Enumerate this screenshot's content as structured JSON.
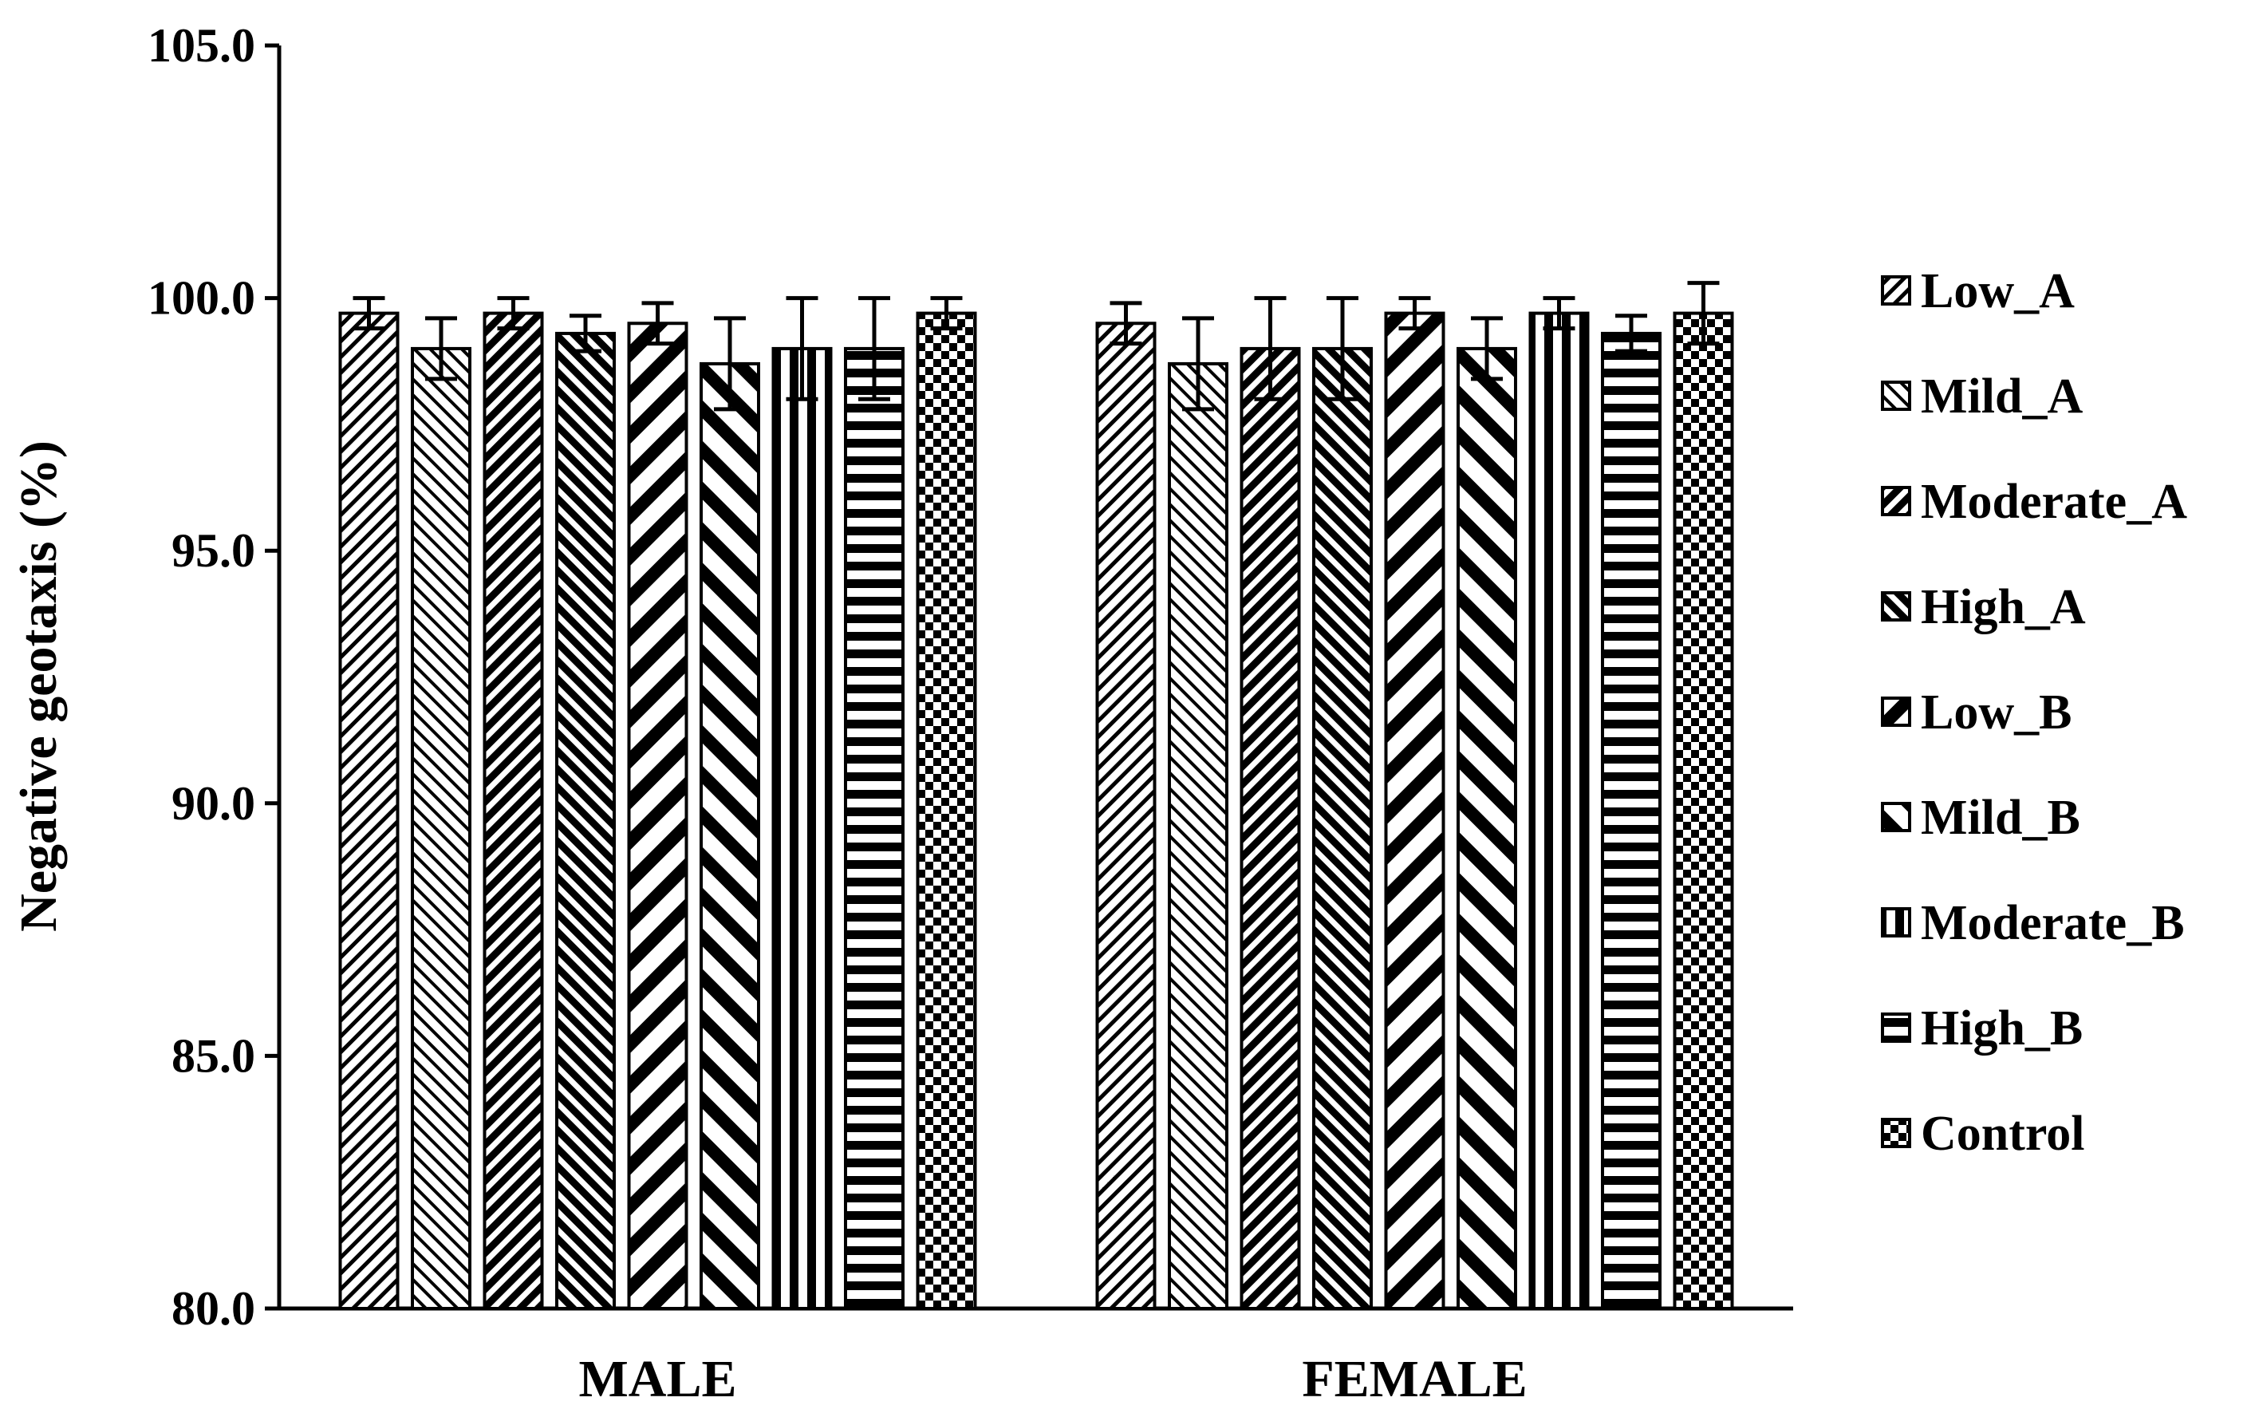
{
  "chart_data": {
    "type": "bar",
    "title": "",
    "xlabel": "",
    "ylabel": "Negative geotaxis (%)",
    "ylim": [
      80,
      105
    ],
    "yticks": [
      "80.0",
      "85.0",
      "90.0",
      "95.0",
      "100.0",
      "105.0"
    ],
    "ytick_values": [
      80,
      85,
      90,
      95,
      100,
      105
    ],
    "categories": [
      "MALE",
      "FEMALE"
    ],
    "grid": false,
    "legend_position": "right",
    "series": [
      {
        "name": "Low_A",
        "pattern": "diag-fine-back",
        "values": [
          99.7,
          99.5
        ],
        "errors": [
          0.3,
          0.4
        ]
      },
      {
        "name": "Mild_A",
        "pattern": "diag-fine-fwd",
        "values": [
          99.0,
          98.7
        ],
        "errors": [
          0.6,
          0.9
        ]
      },
      {
        "name": "Moderate_A",
        "pattern": "diag-mid-back",
        "values": [
          99.7,
          99.0
        ],
        "errors": [
          0.3,
          1.0
        ]
      },
      {
        "name": "High_A",
        "pattern": "diag-mid-fwd",
        "values": [
          99.3,
          99.0
        ],
        "errors": [
          0.35,
          1.0
        ]
      },
      {
        "name": "Low_B",
        "pattern": "diag-wide-back",
        "values": [
          99.5,
          99.7
        ],
        "errors": [
          0.4,
          0.3
        ]
      },
      {
        "name": "Mild_B",
        "pattern": "diag-wide-fwd",
        "values": [
          98.7,
          99.0
        ],
        "errors": [
          0.9,
          0.6
        ]
      },
      {
        "name": "Moderate_B",
        "pattern": "vertical",
        "values": [
          99.0,
          99.7
        ],
        "errors": [
          1.0,
          0.3
        ]
      },
      {
        "name": "High_B",
        "pattern": "horizontal",
        "values": [
          99.0,
          99.3
        ],
        "errors": [
          1.0,
          0.35
        ]
      },
      {
        "name": "Control",
        "pattern": "checker",
        "values": [
          99.7,
          99.7
        ],
        "errors": [
          0.3,
          0.6
        ]
      }
    ]
  }
}
